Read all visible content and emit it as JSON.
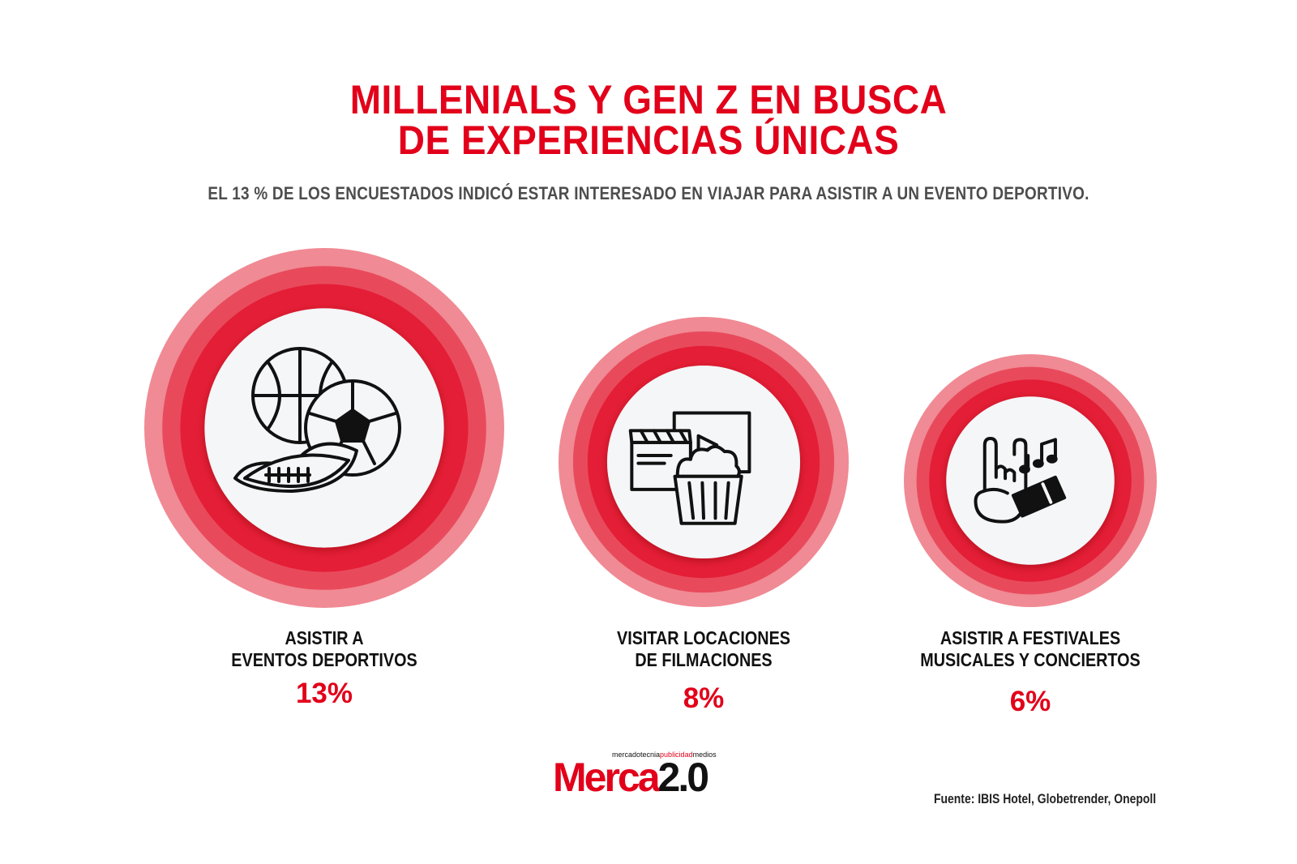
{
  "header": {
    "title_line1": "MILLENIALS Y GEN Z EN BUSCA",
    "title_line2": "DE EXPERIENCIAS ÚNICAS",
    "subtitle": "EL 13 % DE LOS ENCUESTADOS INDICÓ ESTAR INTERESADO EN VIAJAR PARA ASISTIR A UN EVENTO DEPORTIVO."
  },
  "colors": {
    "accent": "#e2001a",
    "ring_outer": "#f08a94",
    "ring_mid": "#e84a5c",
    "ring_inner": "#e41e36",
    "disc": "#f4f6f8"
  },
  "chart_data": {
    "type": "bubble",
    "unit": "%",
    "items": [
      {
        "label_line1": "ASISTIR A",
        "label_line2": "EVENTOS DEPORTIVOS",
        "value": 13,
        "value_label": "13%",
        "icon": "sports-balls-icon"
      },
      {
        "label_line1": "VISITAR LOCACIONES",
        "label_line2": "DE FILMACIONES",
        "value": 8,
        "value_label": "8%",
        "icon": "film-popcorn-icon"
      },
      {
        "label_line1": "ASISTIR A FESTIVALES",
        "label_line2": "MUSICALES Y CONCIERTOS",
        "value": 6,
        "value_label": "6%",
        "icon": "concert-ticket-icon"
      }
    ]
  },
  "footer": {
    "logo_small_1": "mercadotecnia",
    "logo_small_2": "publicidad",
    "logo_small_3": "medios",
    "logo_main_1": "Merca",
    "logo_main_2": "2.0",
    "source": "Fuente: IBIS Hotel, Globetrender, Onepoll"
  }
}
